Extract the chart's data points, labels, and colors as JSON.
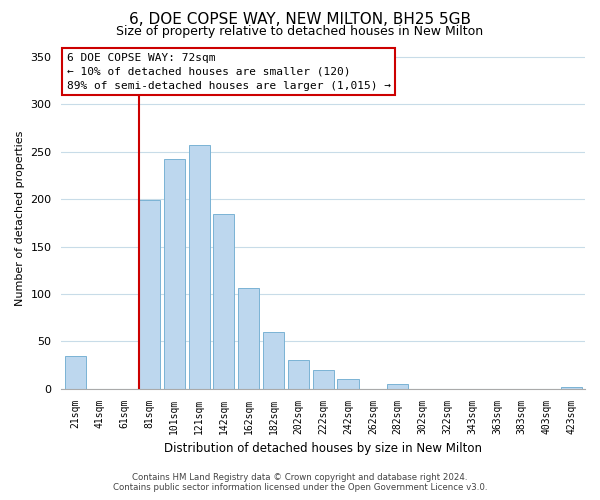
{
  "title": "6, DOE COPSE WAY, NEW MILTON, BH25 5GB",
  "subtitle": "Size of property relative to detached houses in New Milton",
  "xlabel": "Distribution of detached houses by size in New Milton",
  "ylabel": "Number of detached properties",
  "bar_labels": [
    "21sqm",
    "41sqm",
    "61sqm",
    "81sqm",
    "101sqm",
    "121sqm",
    "142sqm",
    "162sqm",
    "182sqm",
    "202sqm",
    "222sqm",
    "242sqm",
    "262sqm",
    "282sqm",
    "302sqm",
    "322sqm",
    "343sqm",
    "363sqm",
    "383sqm",
    "403sqm",
    "423sqm"
  ],
  "bar_values": [
    35,
    0,
    0,
    199,
    242,
    257,
    184,
    106,
    60,
    30,
    20,
    10,
    0,
    5,
    0,
    0,
    0,
    0,
    0,
    0,
    2
  ],
  "bar_color": "#bdd7ee",
  "bar_edge_color": "#7ab3d4",
  "vline_color": "#cc0000",
  "annotation_line1": "6 DOE COPSE WAY: 72sqm",
  "annotation_line2": "← 10% of detached houses are smaller (120)",
  "annotation_line3": "89% of semi-detached houses are larger (1,015) →",
  "annotation_box_color": "#ffffff",
  "annotation_box_edge": "#cc0000",
  "ylim": [
    0,
    360
  ],
  "yticks": [
    0,
    50,
    100,
    150,
    200,
    250,
    300,
    350
  ],
  "footer_line1": "Contains HM Land Registry data © Crown copyright and database right 2024.",
  "footer_line2": "Contains public sector information licensed under the Open Government Licence v3.0.",
  "background_color": "#ffffff",
  "grid_color": "#c8dce8"
}
